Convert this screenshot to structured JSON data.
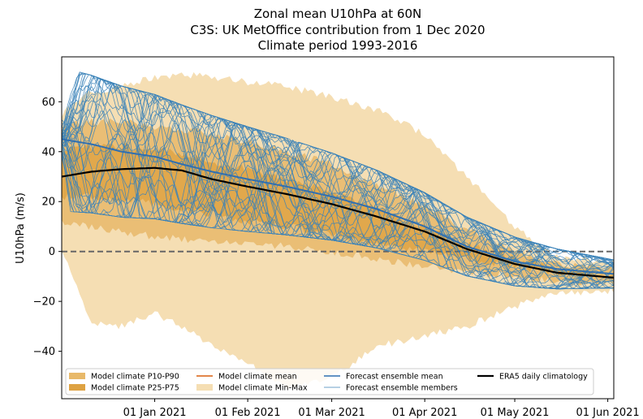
{
  "chart_data": {
    "type": "line",
    "title_lines": [
      "Zonal mean U10hPa at 60N",
      "C3S: UK MetOffice contribution from 1 Dec 2020",
      "Climate period 1993-2016"
    ],
    "xlabel": "",
    "ylabel": "U10hPa (m/s)",
    "x_unit": "days since 1 Dec 2020",
    "xlim": [
      0,
      184
    ],
    "ylim": [
      -59,
      78
    ],
    "yticks": [
      60,
      40,
      20,
      0,
      -20,
      -40
    ],
    "ytick_labels": [
      "60",
      "40",
      "20",
      "0",
      "−20",
      "−40"
    ],
    "xticks": [
      {
        "x": 31,
        "label": "01 Jan 2021"
      },
      {
        "x": 62,
        "label": "01 Feb 2021"
      },
      {
        "x": 90,
        "label": "01 Mar 2021"
      },
      {
        "x": 121,
        "label": "01 Apr 2021"
      },
      {
        "x": 151,
        "label": "01 May 2021"
      },
      {
        "x": 182,
        "label": "01 Jun 2021"
      }
    ],
    "zero_line": 0,
    "colors": {
      "p10_p90": "#e8b96a",
      "p25_p75": "#dea242",
      "minmax": "#f5deb3",
      "clim_mean": "#d95f0e",
      "ens_mean": "#2f6fb1",
      "members": "#3b82b8",
      "era5": "#000000"
    },
    "bands": {
      "x": [
        0,
        10,
        20,
        31,
        40,
        50,
        62,
        75,
        90,
        105,
        121,
        135,
        151,
        165,
        184
      ],
      "min": [
        0,
        -28,
        -30,
        -25,
        -30,
        -38,
        -45,
        -55,
        -50,
        -38,
        -34,
        -30,
        -22,
        -17,
        -16
      ],
      "p10": [
        12,
        10,
        8,
        6,
        5,
        4,
        3,
        2,
        0,
        -3,
        -6,
        -8,
        -10,
        -12,
        -13
      ],
      "p25": [
        22,
        22,
        21,
        19,
        17,
        15,
        12,
        10,
        7,
        3,
        0,
        -3,
        -6,
        -9,
        -11
      ],
      "p75": [
        40,
        42,
        42,
        41,
        39,
        36,
        33,
        29,
        24,
        17,
        10,
        3,
        -3,
        -7,
        -9
      ],
      "p90": [
        50,
        52,
        52,
        50,
        49,
        47,
        44,
        40,
        35,
        27,
        18,
        9,
        0,
        -5,
        -7
      ],
      "max": [
        55,
        64,
        66,
        70,
        71,
        70,
        68,
        66,
        62,
        57,
        47,
        30,
        10,
        -2,
        -4
      ]
    },
    "ensemble_mean": {
      "x": [
        0,
        10,
        20,
        31,
        40,
        50,
        62,
        75,
        90,
        105,
        121,
        135,
        151,
        165,
        184
      ],
      "y": [
        45,
        43,
        40,
        38,
        35,
        32,
        29,
        26,
        22,
        17,
        10,
        2,
        -4,
        -7,
        -9
      ]
    },
    "era5": {
      "x": [
        0,
        10,
        20,
        31,
        40,
        50,
        62,
        75,
        90,
        105,
        121,
        135,
        151,
        165,
        184
      ],
      "y": [
        30,
        32,
        33,
        33.5,
        32.5,
        29,
        26,
        23,
        19,
        14,
        8,
        1,
        -5,
        -8.5,
        -10.5
      ]
    },
    "members_spec": {
      "count": 42,
      "start_mean": 45,
      "seed": 7
    },
    "legend": {
      "placement": "bottom",
      "entries": [
        {
          "key": "p10_p90",
          "kind": "patch",
          "label": "Model climate P10-P90"
        },
        {
          "key": "p25_p75",
          "kind": "patch",
          "label": "Model climate P25-P75"
        },
        {
          "key": "clim_mean",
          "kind": "line",
          "label": "Model climate mean"
        },
        {
          "key": "minmax",
          "kind": "patch",
          "label": "Model climate Min-Max"
        },
        {
          "key": "ens_mean",
          "kind": "line",
          "label": "Forecast ensemble mean"
        },
        {
          "key": "members",
          "kind": "thinline",
          "label": "Forecast ensemble members"
        },
        {
          "key": "era5",
          "kind": "thickline",
          "label": "ERA5 daily climatology"
        }
      ]
    }
  }
}
